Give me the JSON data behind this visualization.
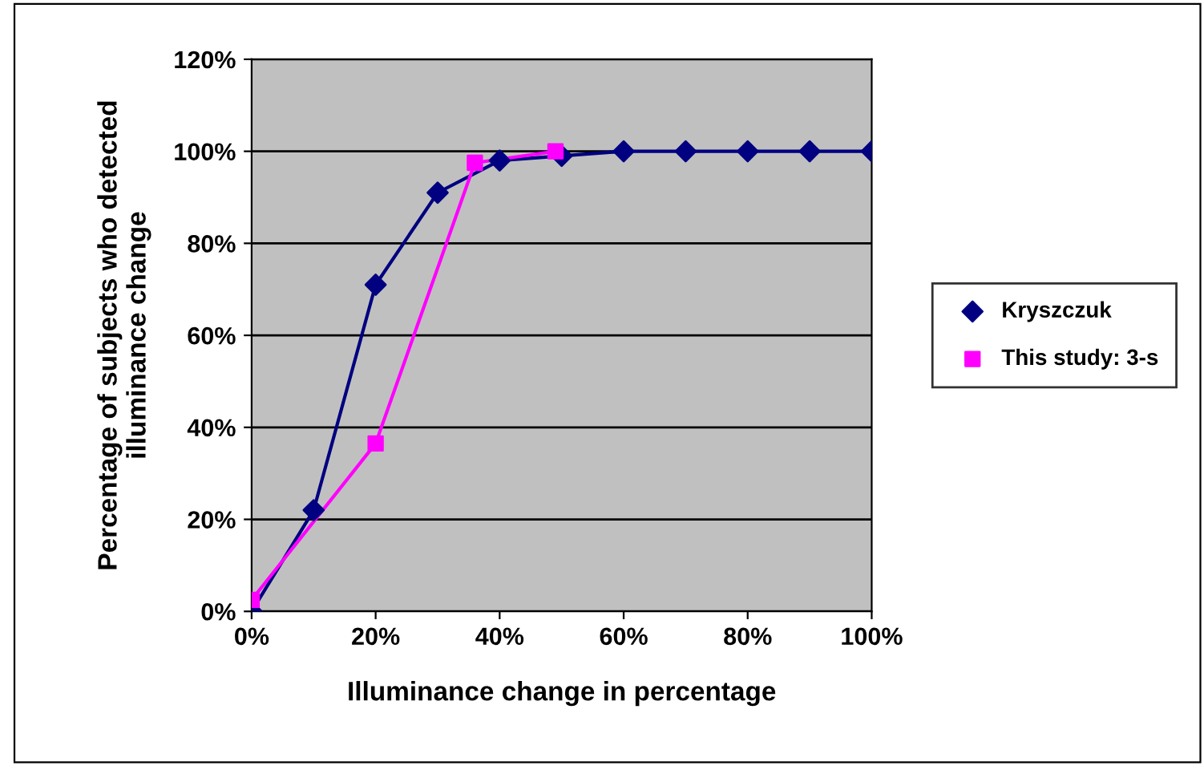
{
  "chart_data": {
    "type": "line",
    "xlabel": "Illuminance change in percentage",
    "ylabel": "Percentage of subjects who detected\nilluminance change",
    "series": [
      {
        "name": "Kryszczuk",
        "color": "#000080",
        "marker": "diamond",
        "x": [
          0,
          10,
          20,
          30,
          40,
          50,
          60,
          70,
          80,
          90,
          100
        ],
        "values": [
          0,
          22,
          71,
          91,
          98,
          99,
          100,
          100,
          100,
          100,
          100
        ]
      },
      {
        "name": "This study: 3-s",
        "color": "#ff00ff",
        "marker": "square",
        "x": [
          0,
          20,
          36,
          49
        ],
        "values": [
          2.5,
          36.5,
          97.5,
          100
        ]
      }
    ],
    "xlim": [
      0,
      100
    ],
    "xticks": [
      {
        "value": 0,
        "label": "0%"
      },
      {
        "value": 20,
        "label": "20%"
      },
      {
        "value": 40,
        "label": "40%"
      },
      {
        "value": 60,
        "label": "60%"
      },
      {
        "value": 80,
        "label": "80%"
      },
      {
        "value": 100,
        "label": "100%"
      }
    ],
    "ylim": [
      0,
      120
    ],
    "yticks": [
      {
        "value": 0,
        "label": "0%"
      },
      {
        "value": 20,
        "label": "20%"
      },
      {
        "value": 40,
        "label": "40%"
      },
      {
        "value": 60,
        "label": "60%"
      },
      {
        "value": 80,
        "label": "80%"
      },
      {
        "value": 100,
        "label": "100%"
      },
      {
        "value": 120,
        "label": "120%"
      }
    ],
    "grid": "y",
    "legend": "right",
    "line_style": "solid"
  }
}
